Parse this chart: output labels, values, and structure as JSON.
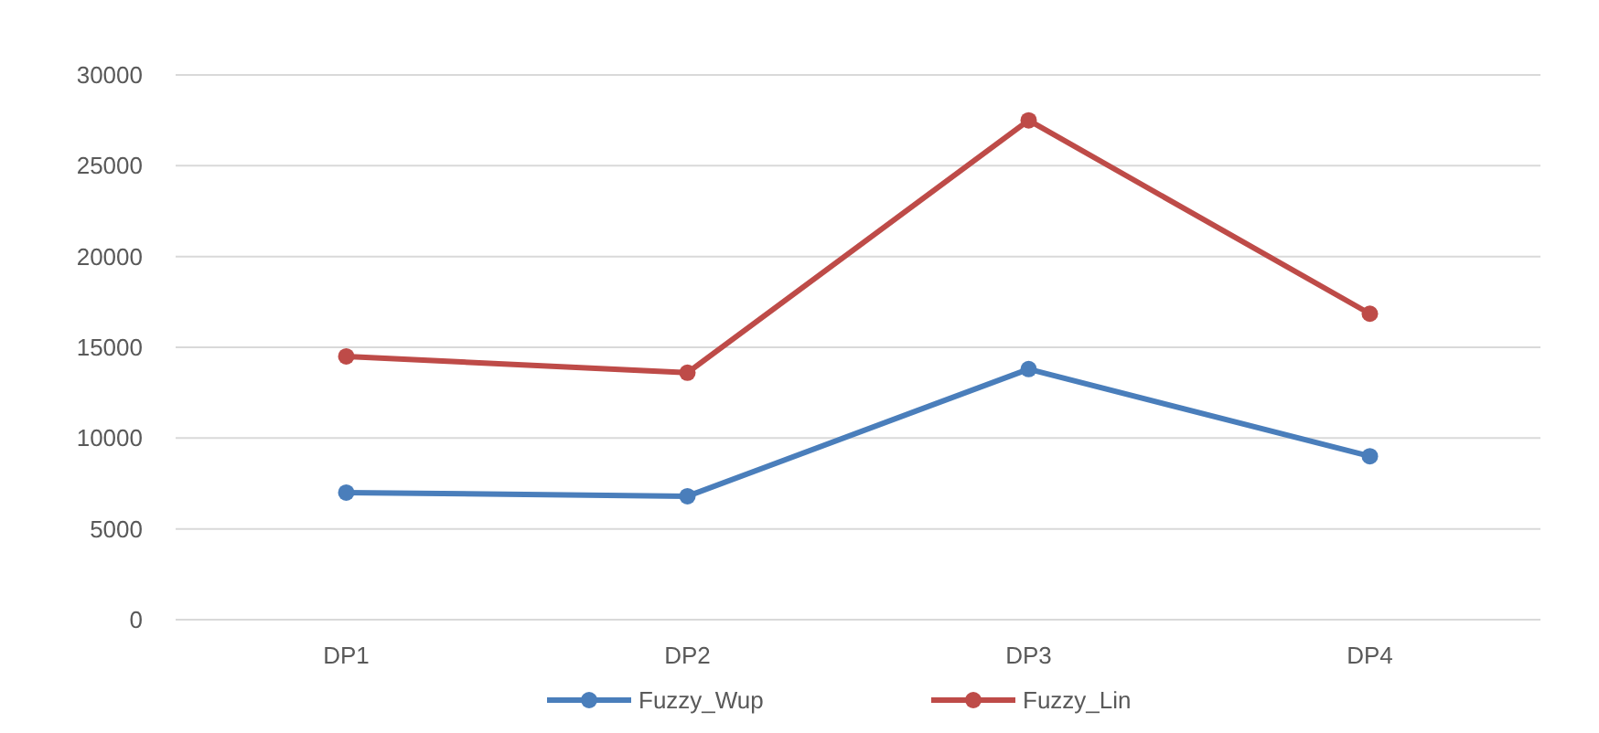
{
  "chart_data": {
    "type": "line",
    "categories": [
      "DP1",
      "DP2",
      "DP3",
      "DP4"
    ],
    "series": [
      {
        "name": "Fuzzy_Wup",
        "color": "#4a7ebb",
        "values": [
          7000,
          6800,
          13800,
          9000
        ]
      },
      {
        "name": "Fuzzy_Lin",
        "color": "#be4b48",
        "values": [
          14500,
          13600,
          27500,
          16850
        ]
      }
    ],
    "ylim": [
      0,
      30000
    ],
    "yticks": [
      0,
      5000,
      10000,
      15000,
      20000,
      25000,
      30000
    ],
    "grid": "y",
    "legend": "bottom",
    "marker": "circle",
    "line_style": "solid"
  }
}
